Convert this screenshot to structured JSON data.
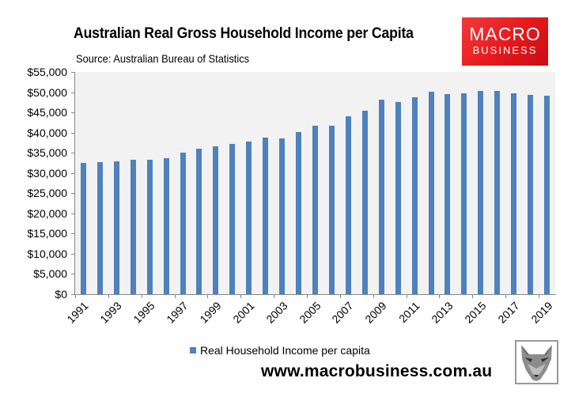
{
  "header": {
    "title": "Australian Real Gross Household Income per Capita",
    "source": "Source: Australian Bureau of Statistics"
  },
  "logo": {
    "line1": "MACRO",
    "line2": "BUSINESS",
    "color": "#e4191d"
  },
  "footer": {
    "url": "www.macrobusiness.com.au",
    "fox_icon": "fox-icon"
  },
  "chart_data": {
    "type": "bar",
    "title": "Australian Real Gross Household Income per Capita",
    "subtitle": "Source: Australian Bureau of Statistics",
    "xlabel": "",
    "ylabel": "",
    "ylim": [
      0,
      55000
    ],
    "yticks": [
      "$0",
      "$5,000",
      "$10,000",
      "$15,000",
      "$20,000",
      "$25,000",
      "$30,000",
      "$35,000",
      "$40,000",
      "$45,000",
      "$50,000",
      "$55,000"
    ],
    "xtick_labels": [
      "1991",
      "1993",
      "1995",
      "1997",
      "1999",
      "2001",
      "2003",
      "2005",
      "2007",
      "2009",
      "2011",
      "2013",
      "2015",
      "2017",
      "2019"
    ],
    "grid": false,
    "legend_position": "bottom",
    "bar_color": "#4f81bd",
    "plot_background": "#f2f2f2",
    "categories": [
      "1991",
      "1992",
      "1993",
      "1994",
      "1995",
      "1996",
      "1997",
      "1998",
      "1999",
      "2000",
      "2001",
      "2002",
      "2003",
      "2004",
      "2005",
      "2006",
      "2007",
      "2008",
      "2009",
      "2010",
      "2011",
      "2012",
      "2013",
      "2014",
      "2015",
      "2016",
      "2017",
      "2018",
      "2019"
    ],
    "series": [
      {
        "name": "Real Household Income per capita",
        "values": [
          32500,
          32700,
          32900,
          33300,
          33300,
          33700,
          35000,
          36000,
          36600,
          37200,
          37800,
          38800,
          38600,
          40100,
          41700,
          41700,
          44000,
          45400,
          48200,
          47600,
          48700,
          50100,
          49500,
          49700,
          50300,
          50300,
          49700,
          49300,
          49100
        ]
      }
    ]
  }
}
